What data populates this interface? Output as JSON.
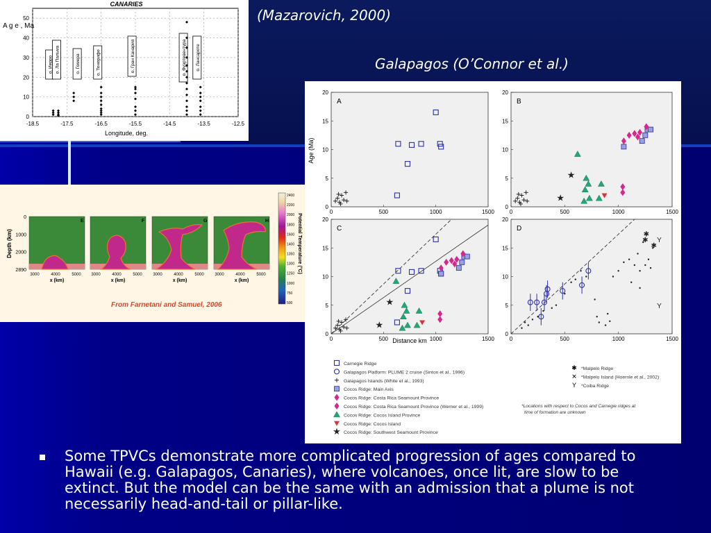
{
  "captions": {
    "mazarovich": "(Mazarovich, 2000)",
    "galapagos": "Galapagos (O’Connor et al.)",
    "farnetani": "From Farnetani and Samuel, 2006"
  },
  "bullet": {
    "text": "Some TPVCs demonstrate more complicated progression of ages compared to Hawaii (e.g. Galapagos, Canaries), where volcanoes, once lit, are slow to be extinct. But the model can be the same with an admission that a plume is not necessarily head-and-tail or pillar-like."
  },
  "canaries_chart": {
    "title": "CANARIES",
    "ylabel": "A g e , Ma",
    "xlabel": "Longitude, deg.",
    "yticks": [
      "50",
      "40",
      "30",
      "20",
      "10",
      "0"
    ],
    "xticks": [
      "-18.5",
      "-17.5",
      "-16.5",
      "-15.5",
      "-14.5",
      "-13.5",
      "-12.5"
    ],
    "islands": [
      "о. Иерро",
      "о. Ла Пальма",
      "о. Гомера",
      "о. Тенерифе",
      "о. Гран Канария",
      "о. Фуэртевентура",
      "о. Лансароте"
    ]
  },
  "farnetani_figure": {
    "panel_labels": [
      "E",
      "F",
      "G",
      "H"
    ],
    "depth_label": "Depth (km)",
    "depth_ticks": [
      "0",
      "1000",
      "2000",
      "2890"
    ],
    "x_label": "x (km)",
    "x_ticks": [
      "3000",
      "4000",
      "5000"
    ],
    "colorbar_label": "Potential Temperature (°C)",
    "colorbar_ticks": [
      "2400",
      "2200",
      "2000",
      "1800",
      "1600",
      "1400",
      "1350",
      "1300",
      "1250",
      "1000",
      "750",
      "500"
    ]
  },
  "galapagos_figure": {
    "panels": [
      "A",
      "B",
      "C",
      "D"
    ],
    "ylabel": "Age (Ma)",
    "xlabel": "Distance km",
    "yticks": [
      "20",
      "15",
      "10",
      "5",
      "0"
    ],
    "xticks": [
      "0",
      "500",
      "1000",
      "1500"
    ],
    "legend_left": [
      "Carnegie Ridge",
      "Galapagos Platform: PLUME 2 cruise (Sinton et al., 1996)",
      "Galapagos Islands (White et al., 1993)",
      "Cocos Ridge: Main Axis",
      "Cocos Ridge: Costa Rica Seamount Province",
      "Cocos Ridge: Costa Rica Seamount Province (Werner et al., 1999)",
      "Cocos Ridge: Cocos Island Province",
      "Cocos Ridge: Cocos Island",
      "Cocos Ridge: Southwest Seamount Province"
    ],
    "legend_right": [
      "*Malpelo Ridge",
      "*Malpelo Island (Hoernle et al., 2002)",
      "*Coiba Ridge"
    ],
    "legend_note": "*Locations with respect to Cocos and Carnegie ridges at time of formation are unknown",
    "colors": {
      "blue": "#2b2fa6",
      "magenta": "#d9268f",
      "green": "#22a878",
      "red": "#d8343c",
      "black": "#222222"
    }
  }
}
